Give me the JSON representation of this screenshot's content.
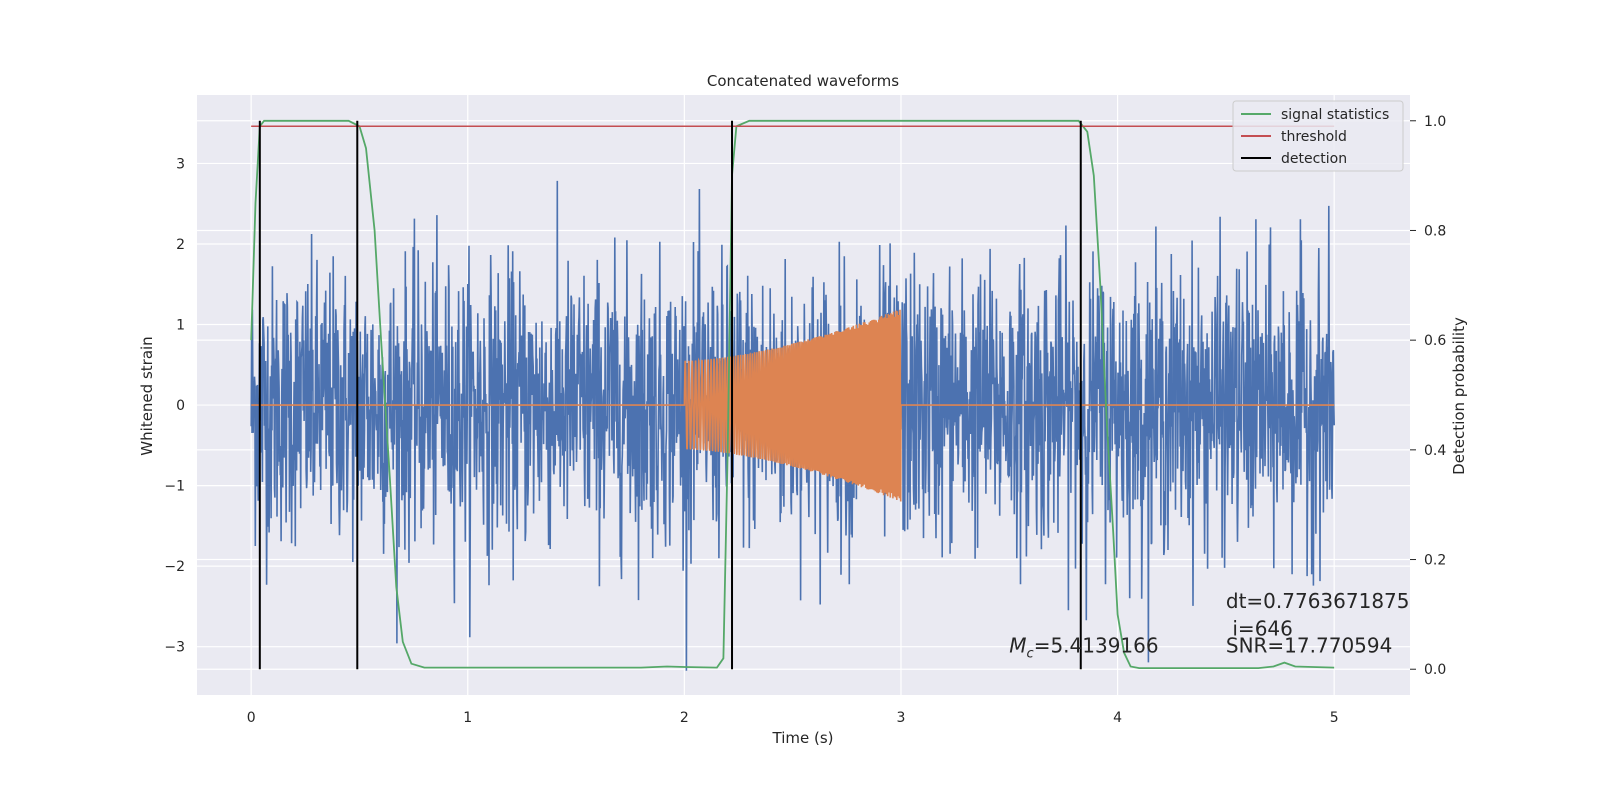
{
  "chart_data": {
    "type": "line",
    "title": "Concatenated waveforms",
    "xlabel": "Time (s)",
    "ylabel": "Whitened strain",
    "y2label": "Detection probability",
    "xlim": [
      -0.25,
      5.35
    ],
    "ylim": [
      -3.6,
      3.85
    ],
    "y2lim": [
      -0.047,
      1.047
    ],
    "xticks": [
      0,
      1,
      2,
      3,
      4,
      5
    ],
    "yticks": [
      -3,
      -2,
      -1,
      0,
      1,
      2,
      3
    ],
    "y2ticks": [
      0.0,
      0.2,
      0.4,
      0.6,
      0.8,
      1.0
    ],
    "xtick_labels": [
      "0",
      "1",
      "2",
      "3",
      "4",
      "5"
    ],
    "ytick_labels": [
      "−3",
      "−2",
      "−1",
      "0",
      "1",
      "2",
      "3"
    ],
    "y2tick_labels": [
      "0.0",
      "0.2",
      "0.4",
      "0.6",
      "0.8",
      "1.0"
    ],
    "grid": true,
    "legend_position": "top-right",
    "legend": [
      {
        "label": "signal statistics",
        "color": "#55a868"
      },
      {
        "label": "threshold",
        "color": "#c44e52"
      },
      {
        "label": "detection",
        "color": "#000000"
      }
    ],
    "series": [
      {
        "kind": "strain",
        "color": "#4c72b0",
        "x_range": [
          0,
          5
        ],
        "noise_amplitude": 2.7
      },
      {
        "kind": "waveform",
        "color": "#dd8452",
        "x_range": [
          0,
          5
        ],
        "chirp_window": [
          2.0,
          3.0
        ],
        "amp_start": 0.55,
        "amp_end": 1.2
      },
      {
        "kind": "statistic",
        "color": "#55a868",
        "axis": "right",
        "points": [
          [
            0,
            0.6
          ],
          [
            0.02,
            0.85
          ],
          [
            0.04,
            0.99
          ],
          [
            0.06,
            1.0
          ],
          [
            0.45,
            1.0
          ],
          [
            0.5,
            0.99
          ],
          [
            0.53,
            0.95
          ],
          [
            0.57,
            0.8
          ],
          [
            0.6,
            0.6
          ],
          [
            0.64,
            0.35
          ],
          [
            0.67,
            0.15
          ],
          [
            0.7,
            0.05
          ],
          [
            0.74,
            0.01
          ],
          [
            0.8,
            0.003
          ],
          [
            1.8,
            0.003
          ],
          [
            1.92,
            0.005
          ],
          [
            2.0,
            0.004
          ],
          [
            2.15,
            0.003
          ],
          [
            2.18,
            0.02
          ],
          [
            2.2,
            0.4
          ],
          [
            2.22,
            0.9
          ],
          [
            2.24,
            0.99
          ],
          [
            2.3,
            1.0
          ],
          [
            3.82,
            1.0
          ],
          [
            3.86,
            0.98
          ],
          [
            3.89,
            0.9
          ],
          [
            3.92,
            0.7
          ],
          [
            3.95,
            0.45
          ],
          [
            3.98,
            0.25
          ],
          [
            4.0,
            0.1
          ],
          [
            4.03,
            0.03
          ],
          [
            4.06,
            0.005
          ],
          [
            4.1,
            0.002
          ],
          [
            4.65,
            0.002
          ],
          [
            4.72,
            0.005
          ],
          [
            4.77,
            0.012
          ],
          [
            4.82,
            0.005
          ],
          [
            4.9,
            0.004
          ],
          [
            5.0,
            0.003
          ]
        ]
      },
      {
        "kind": "threshold",
        "color": "#c44e52",
        "axis": "right",
        "value": 0.99,
        "x_range": [
          0,
          5
        ]
      },
      {
        "kind": "detection",
        "color": "#000000",
        "x": [
          0.04,
          0.49,
          2.22,
          3.83
        ],
        "y2_range": [
          0,
          1.0
        ]
      }
    ],
    "annotations": [
      {
        "text": "dt=0.7763671875",
        "x": 4.5,
        "y": -2.52
      },
      {
        "text": "i=646",
        "x": 4.53,
        "y": -2.86
      },
      {
        "text": "SNR=17.770594",
        "x": 4.5,
        "y": -3.07
      },
      {
        "prefix": "M",
        "sub": "c",
        "text": "=5.4139166",
        "x": 3.5,
        "y": -3.07
      }
    ]
  }
}
